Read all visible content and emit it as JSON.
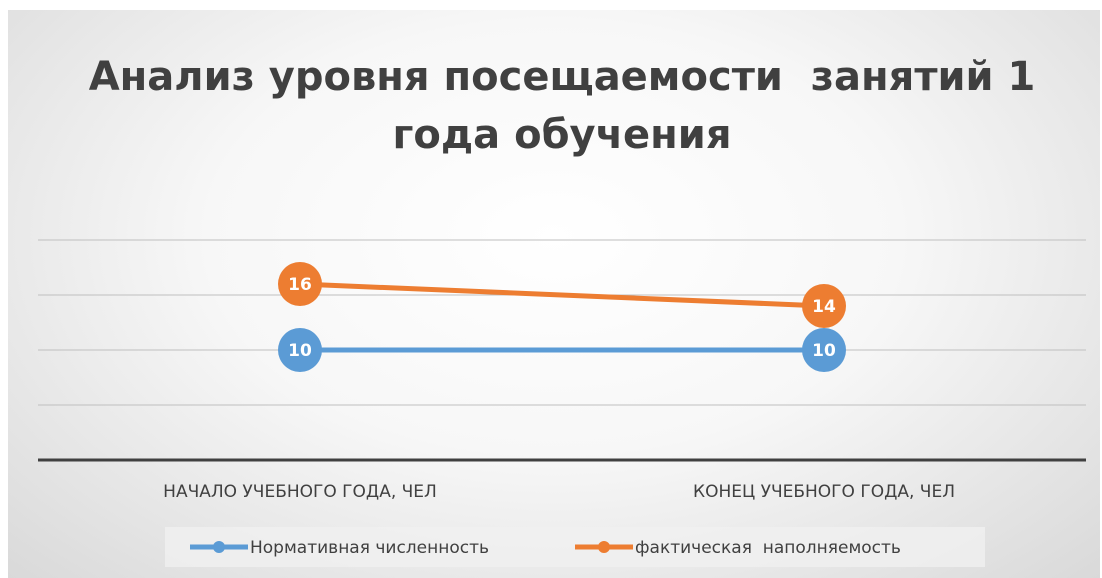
{
  "chart_data": {
    "type": "line",
    "title": "Анализ уровня посещаемости  занятий 1 года обучения",
    "categories": [
      "НАЧАЛО УЧЕБНОГО ГОДА, ЧЕЛ",
      "КОНЕЦ УЧЕБНОГО ГОДА, ЧЕЛ"
    ],
    "series": [
      {
        "name": "Нормативная численность",
        "color": "#5b9bd5",
        "values": [
          10,
          10
        ]
      },
      {
        "name": "фактическая  наполняемость",
        "color": "#ed7d31",
        "values": [
          16,
          14
        ]
      }
    ],
    "ylim": [
      0,
      20
    ],
    "yticks": [
      0,
      5,
      10,
      15,
      20
    ],
    "grid": true,
    "legend": "bottom"
  }
}
